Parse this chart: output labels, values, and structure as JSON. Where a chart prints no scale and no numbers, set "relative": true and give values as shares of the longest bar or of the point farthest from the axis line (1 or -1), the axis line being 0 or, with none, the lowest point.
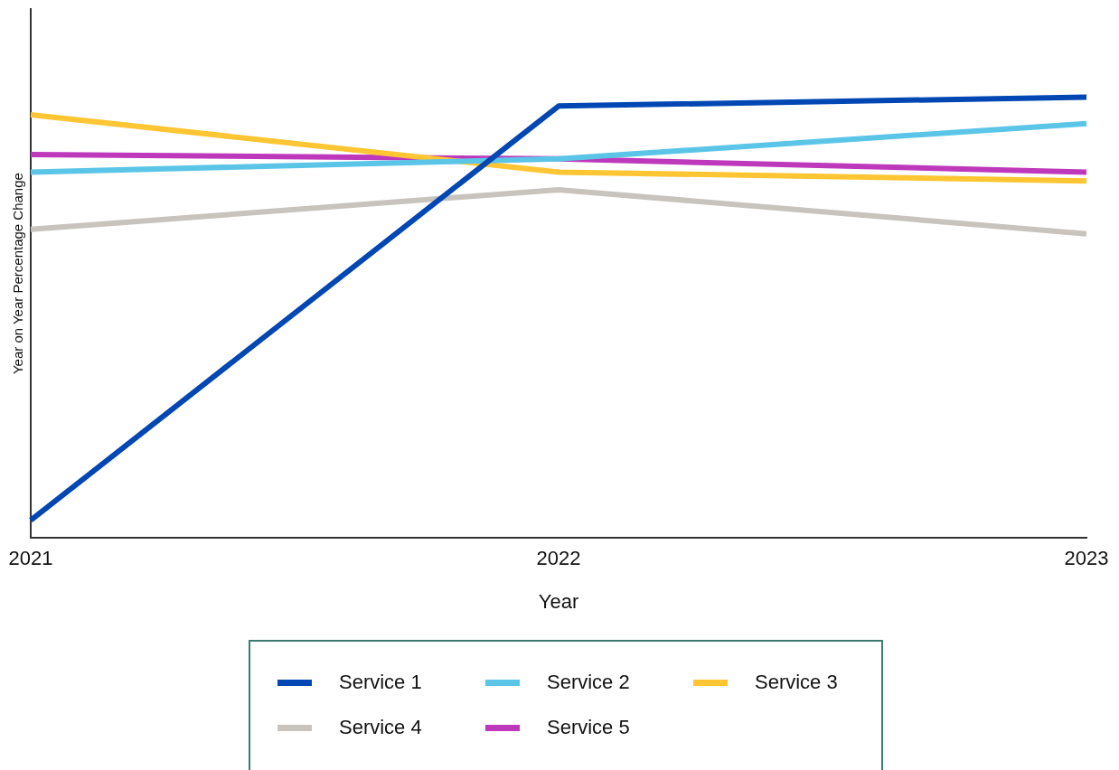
{
  "chart_data": {
    "type": "line",
    "xlabel": "Year",
    "ylabel": "Year on Year Percentage Change",
    "categories": [
      "2021",
      "2022",
      "2023"
    ],
    "relative": true,
    "legend": "bottom",
    "grid": false,
    "marker": "none",
    "line_style": "solid",
    "series": [
      {
        "name": "Service 1",
        "color": "#0047b3",
        "values": [
          0.04,
          0.98,
          1
        ]
      },
      {
        "name": "Service 2",
        "color": "#5bc5e8",
        "values": [
          0.83,
          0.86,
          0.94
        ]
      },
      {
        "name": "Service 3",
        "color": "#ffc532",
        "values": [
          0.96,
          0.83,
          0.81
        ]
      },
      {
        "name": "Service 4",
        "color": "#c8c3bd",
        "values": [
          0.7,
          0.79,
          0.69
        ]
      },
      {
        "name": "Service 5",
        "color": "#be38bc",
        "values": [
          0.87,
          0.86,
          0.83
        ]
      }
    ]
  }
}
